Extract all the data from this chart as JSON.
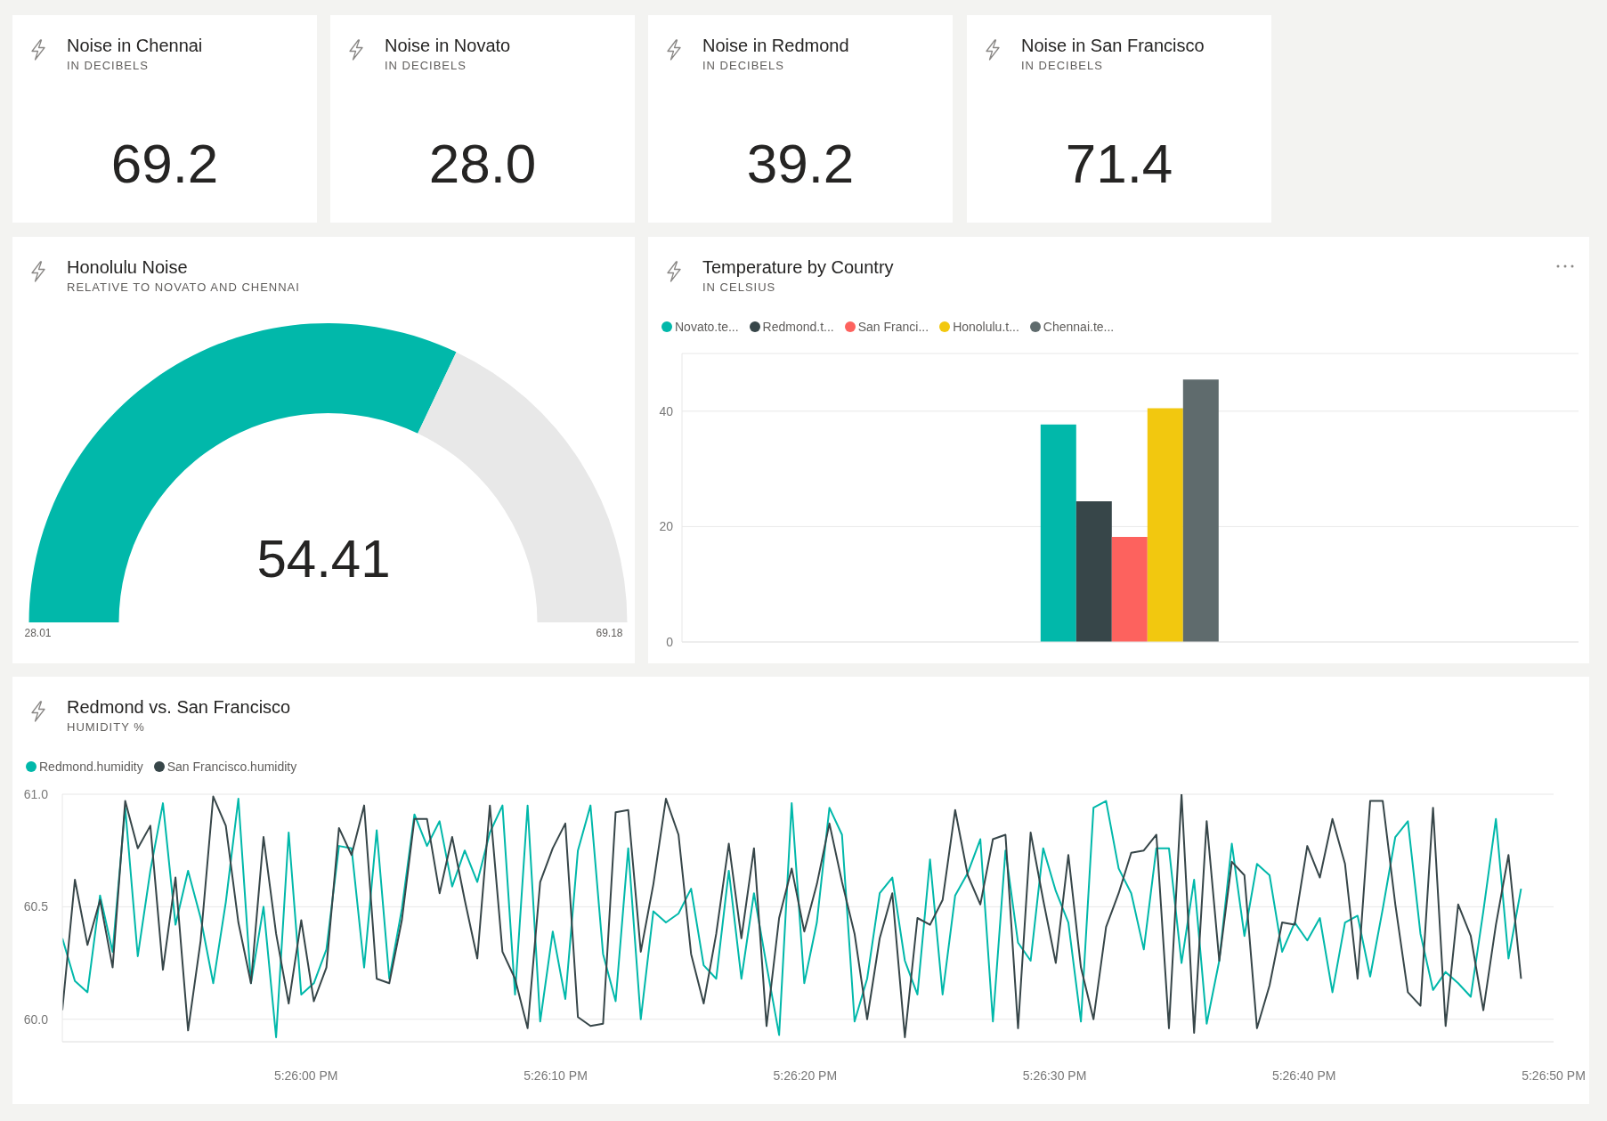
{
  "chart_data": [
    {
      "type": "other",
      "title": "Noise in Chennai",
      "subtitle": "IN DECIBELS",
      "annotations": [
        "69.2"
      ]
    },
    {
      "type": "other",
      "title": "Noise in Novato",
      "subtitle": "IN DECIBELS",
      "annotations": [
        "28.0"
      ]
    },
    {
      "type": "other",
      "title": "Noise in Redmond",
      "subtitle": "IN DECIBELS",
      "annotations": [
        "39.2"
      ]
    },
    {
      "type": "other",
      "title": "Noise in San Francisco",
      "subtitle": "IN DECIBELS",
      "annotations": [
        "71.4"
      ]
    },
    {
      "type": "donut",
      "title": "Honolulu Noise",
      "subtitle": "RELATIVE TO NOVATO AND CHENNAI",
      "categories": [
        null,
        null
      ],
      "values": [
        64.1,
        35.9
      ],
      "colors": [
        "#01b8aa",
        "#e8e8e8"
      ],
      "annotations": [
        "54.41",
        "28.01",
        "69.18"
      ]
    },
    {
      "type": "bar",
      "title": "Temperature by Country",
      "subtitle": "IN CELSIUS",
      "categories": [
        null
      ],
      "series": [
        {
          "name": "Novato.te...",
          "color": "#01b8aa",
          "values": [
            37.7
          ]
        },
        {
          "name": "Redmond.t...",
          "color": "#374649",
          "values": [
            24.4
          ]
        },
        {
          "name": "San Franci...",
          "color": "#fd625e",
          "values": [
            18.2
          ]
        },
        {
          "name": "Honolulu.t...",
          "color": "#f2c80f",
          "values": [
            40.5
          ]
        },
        {
          "name": "Chennai.te...",
          "color": "#5f6b6d",
          "values": [
            45.5
          ]
        }
      ],
      "ylim": [
        0,
        50
      ],
      "yticks": [
        0,
        20,
        40
      ],
      "grid": "y",
      "legend": "top left"
    },
    {
      "type": "line",
      "title": "Redmond vs. San Francisco",
      "subtitle": "HUMIDITY %",
      "x": [
        17.43062,
        17.43076,
        17.4309,
        17.43104,
        17.43118,
        17.43132,
        17.43146,
        17.4316,
        17.43174,
        17.43188,
        17.43202,
        17.43216,
        17.4323,
        17.43244,
        17.43258,
        17.43272,
        17.43286,
        17.433,
        17.43314,
        17.43328,
        17.43342,
        17.43356,
        17.4337,
        17.43384,
        17.43398,
        17.43412,
        17.43426,
        17.4344,
        17.43454,
        17.43468,
        17.43482,
        17.43496,
        17.4351,
        17.43524,
        17.43538,
        17.43552,
        17.43566,
        17.4358,
        17.43594,
        17.43608,
        17.43622,
        17.43636,
        17.4365,
        17.43664,
        17.43678,
        17.43692,
        17.43706,
        17.4372,
        17.43734,
        17.43748,
        17.43762,
        17.43776,
        17.4379,
        17.43804,
        17.43818,
        17.43832,
        17.43846,
        17.4386,
        17.43874,
        17.43888,
        17.43902,
        17.43916,
        17.4393,
        17.43944,
        17.43958,
        17.43972,
        17.43986,
        17.44,
        17.44014,
        17.44028,
        17.44042,
        17.44056,
        17.4407,
        17.44084,
        17.44098,
        17.44112,
        17.44126,
        17.4414,
        17.44154,
        17.44168,
        17.44182,
        17.44196,
        17.4421,
        17.44224,
        17.44238,
        17.44252,
        17.44266,
        17.4428,
        17.44294,
        17.44308,
        17.44322,
        17.44336,
        17.4435,
        17.44364,
        17.44378,
        17.44392,
        17.44406,
        17.4442,
        17.44434,
        17.44448,
        17.44462,
        17.44476,
        17.4449,
        17.44504,
        17.44518,
        17.44532,
        17.44546,
        17.4456,
        17.44574,
        17.44588,
        17.44602,
        17.44616,
        17.4463,
        17.44644,
        17.44658,
        17.44672,
        17.44686
      ],
      "series": [
        {
          "name": "Redmond.humidity",
          "color": "#01b8aa",
          "values": [
            60.36,
            60.17,
            60.12,
            60.55,
            60.3,
            60.94,
            60.28,
            60.66,
            60.96,
            60.42,
            60.66,
            60.45,
            60.16,
            60.52,
            60.98,
            60.16,
            60.5,
            59.92,
            60.83,
            60.11,
            60.16,
            60.31,
            60.77,
            60.76,
            60.23,
            60.84,
            60.18,
            60.49,
            60.91,
            60.77,
            60.88,
            60.59,
            60.75,
            60.61,
            60.83,
            60.95,
            60.11,
            60.95,
            59.99,
            60.39,
            60.09,
            60.75,
            60.95,
            60.29,
            60.08,
            60.76,
            60.0,
            60.48,
            60.43,
            60.47,
            60.58,
            60.24,
            60.18,
            60.66,
            60.18,
            60.56,
            60.24,
            59.93,
            60.96,
            60.16,
            60.43,
            60.94,
            60.82,
            59.99,
            60.18,
            60.56,
            60.63,
            60.26,
            60.11,
            60.71,
            60.11,
            60.55,
            60.65,
            60.8,
            59.99,
            60.75,
            60.34,
            60.26,
            60.76,
            60.57,
            60.43,
            59.99,
            60.94,
            60.97,
            60.67,
            60.56,
            60.31,
            60.76,
            60.76,
            60.25,
            60.62,
            59.98,
            60.26,
            60.78,
            60.37,
            60.69,
            60.64,
            60.3,
            60.43,
            60.35,
            60.45,
            60.12,
            60.43,
            60.46,
            60.19,
            60.49,
            60.81,
            60.88,
            60.38,
            60.13,
            60.21,
            60.16,
            60.1,
            60.48,
            60.89,
            60.27,
            60.58
          ]
        },
        {
          "name": "San Francisco.humidity",
          "color": "#374649",
          "values": [
            60.04,
            60.62,
            60.33,
            60.53,
            60.23,
            60.97,
            60.76,
            60.86,
            60.22,
            60.63,
            59.95,
            60.35,
            60.99,
            60.86,
            60.43,
            60.16,
            60.81,
            60.38,
            60.07,
            60.44,
            60.08,
            60.23,
            60.85,
            60.73,
            60.95,
            60.18,
            60.16,
            60.44,
            60.89,
            60.89,
            60.56,
            60.81,
            60.53,
            60.27,
            60.95,
            60.3,
            60.18,
            59.96,
            60.61,
            60.76,
            60.87,
            60.01,
            59.97,
            59.98,
            60.92,
            60.93,
            60.3,
            60.6,
            60.98,
            60.82,
            60.29,
            60.07,
            60.38,
            60.78,
            60.36,
            60.76,
            59.97,
            60.45,
            60.67,
            60.39,
            60.6,
            60.87,
            60.61,
            60.38,
            60.0,
            60.36,
            60.56,
            59.92,
            60.45,
            60.42,
            60.53,
            60.93,
            60.64,
            60.51,
            60.8,
            60.82,
            59.96,
            60.83,
            60.53,
            60.25,
            60.73,
            60.23,
            60.0,
            60.41,
            60.56,
            60.74,
            60.75,
            60.82,
            59.96,
            61.0,
            59.94,
            60.88,
            60.26,
            60.7,
            60.64,
            59.96,
            60.15,
            60.43,
            60.42,
            60.77,
            60.63,
            60.89,
            60.69,
            60.18,
            60.97,
            60.97,
            60.51,
            60.12,
            60.06,
            60.94,
            59.97,
            60.51,
            60.37,
            60.04,
            60.42,
            60.73,
            60.18
          ]
        }
      ],
      "xlim": [
        17.43062,
        17.447222
      ],
      "xticks": [
        {
          "value": 17.433333,
          "label": "5:26:00 PM"
        },
        {
          "value": 17.436111,
          "label": "5:26:10 PM"
        },
        {
          "value": 17.438889,
          "label": "5:26:20 PM"
        },
        {
          "value": 17.441667,
          "label": "5:26:30 PM"
        },
        {
          "value": 17.444444,
          "label": "5:26:40 PM"
        },
        {
          "value": 17.447222,
          "label": "5:26:50 PM"
        }
      ],
      "ylim": [
        59.9,
        61
      ],
      "yticks": [
        {
          "value": 60,
          "label": "60.0"
        },
        {
          "value": 60.5,
          "label": "60.5"
        },
        {
          "value": 61,
          "label": "61.0"
        }
      ],
      "grid": "y",
      "legend": "top left"
    }
  ]
}
